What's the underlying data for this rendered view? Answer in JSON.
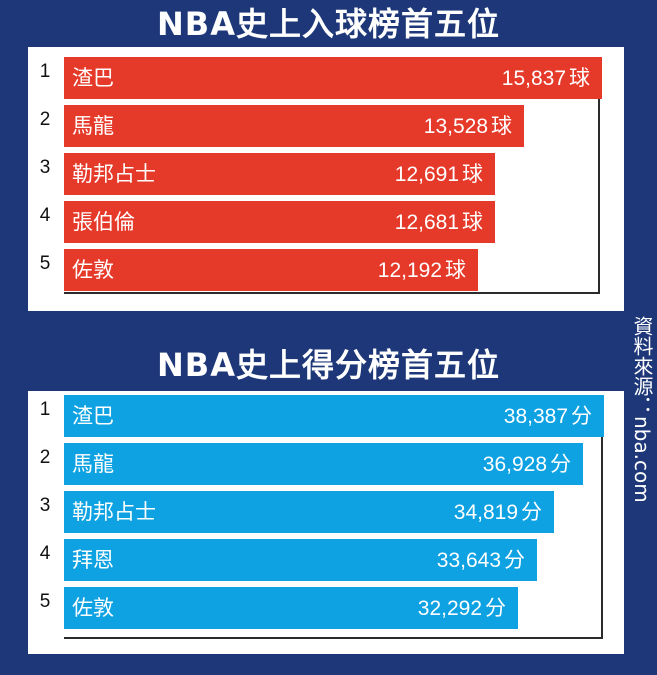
{
  "source": "資料來源：nba.com",
  "colors": {
    "background": "#1d3778",
    "goals_bar": "#e53a2a",
    "points_bar": "#0ea2e2"
  },
  "chart_data": [
    {
      "type": "bar",
      "orientation": "horizontal",
      "title": "NBA史上入球榜首五位",
      "unit": "球",
      "ranks": [
        "1",
        "2",
        "3",
        "4",
        "5"
      ],
      "categories": [
        "渣巴",
        "馬龍",
        "勒邦占士",
        "張伯倫",
        "佐敦"
      ],
      "values": [
        15837,
        13528,
        12691,
        12681,
        12192
      ],
      "value_labels": [
        "15,837",
        "13,528",
        "12,691",
        "12,681",
        "12,192"
      ],
      "xlim": [
        0,
        15837
      ]
    },
    {
      "type": "bar",
      "orientation": "horizontal",
      "title": "NBA史上得分榜首五位",
      "unit": "分",
      "ranks": [
        "1",
        "2",
        "3",
        "4",
        "5"
      ],
      "categories": [
        "渣巴",
        "馬龍",
        "勒邦占士",
        "拜恩",
        "佐敦"
      ],
      "values": [
        38387,
        36928,
        34819,
        33643,
        32292
      ],
      "value_labels": [
        "38,387",
        "36,928",
        "34,819",
        "33,643",
        "32,292"
      ],
      "xlim": [
        0,
        38387
      ]
    }
  ]
}
